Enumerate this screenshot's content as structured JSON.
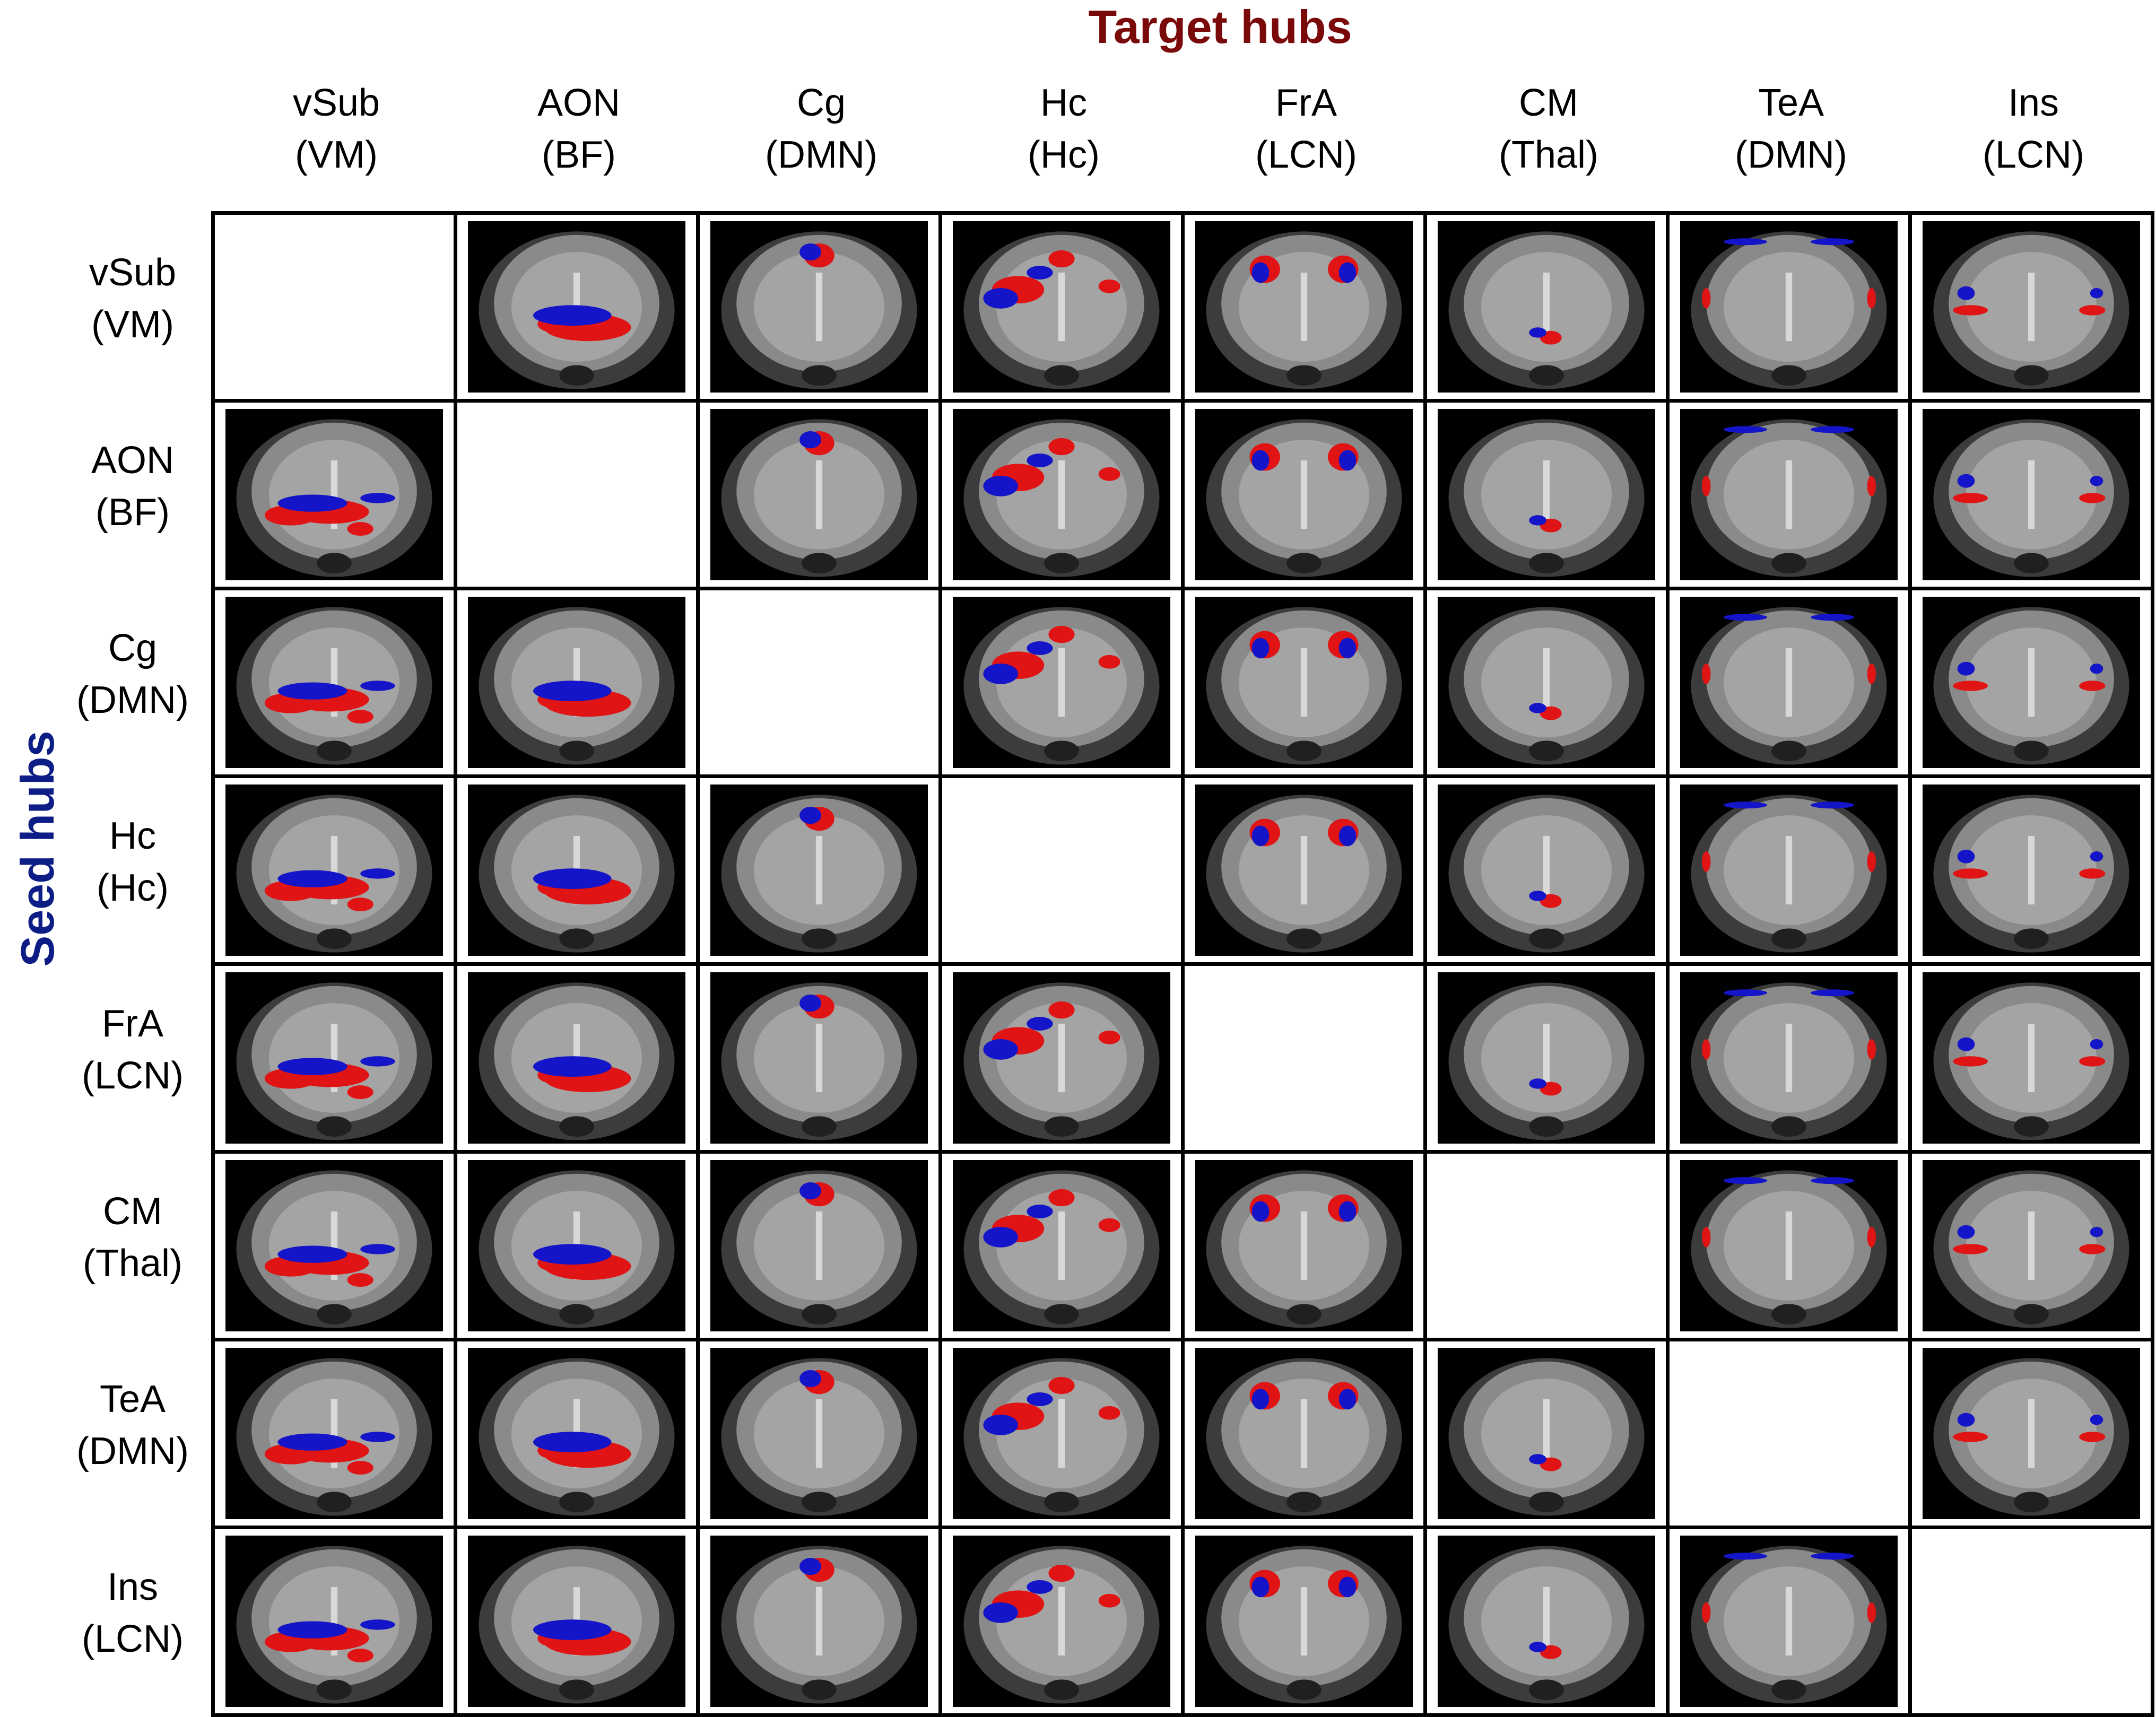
{
  "title_target": "Target hubs",
  "title_seed": "Seed hubs",
  "colors": {
    "target_title": "#7a0a0a",
    "seed_title": "#0c1e86",
    "positive": "#e01414",
    "negative": "#1414c8",
    "mri_background": "#000000"
  },
  "hubs": [
    {
      "id": "vSub",
      "name": "vSub",
      "network": "(VM)"
    },
    {
      "id": "AON",
      "name": "AON",
      "network": "(BF)"
    },
    {
      "id": "Cg",
      "name": "Cg",
      "network": "(DMN)"
    },
    {
      "id": "Hc",
      "name": "Hc",
      "network": "(Hc)"
    },
    {
      "id": "FrA",
      "name": "FrA",
      "network": "(LCN)"
    },
    {
      "id": "CM",
      "name": "CM",
      "network": "(Thal)"
    },
    {
      "id": "TeA",
      "name": "TeA",
      "network": "(DMN)"
    },
    {
      "id": "Ins",
      "name": "Ins",
      "network": "(LCN)"
    }
  ],
  "diagonal": "empty"
}
